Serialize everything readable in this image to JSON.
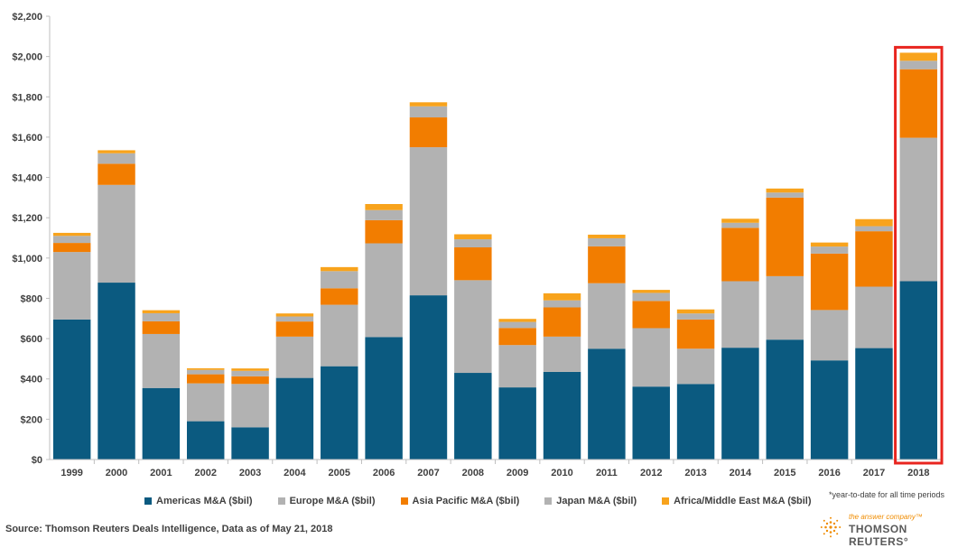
{
  "chart_data": {
    "type": "stacked-bar",
    "categories": [
      "1999",
      "2000",
      "2001",
      "2002",
      "2003",
      "2004",
      "2005",
      "2006",
      "2007",
      "2008",
      "2009",
      "2010",
      "2011",
      "2012",
      "2013",
      "2014",
      "2015",
      "2016",
      "2017",
      "2018"
    ],
    "y_tick_labels": [
      "$0",
      "$200",
      "$400",
      "$600",
      "$800",
      "$1,000",
      "$1,200",
      "$1,400",
      "$1,600",
      "$1,800",
      "$2,000",
      "$2,200"
    ],
    "ylim": [
      0,
      2200
    ],
    "series": [
      {
        "name": "Americas M&A ($bil)",
        "color": "#0b5a80",
        "values": [
          695,
          878,
          355,
          190,
          160,
          405,
          463,
          608,
          815,
          430,
          358,
          435,
          550,
          362,
          375,
          555,
          595,
          492,
          553,
          885
        ]
      },
      {
        "name": "Europe M&A ($bil)",
        "color": "#b2b2b2",
        "values": [
          335,
          485,
          268,
          188,
          215,
          205,
          305,
          465,
          735,
          460,
          210,
          175,
          325,
          290,
          175,
          330,
          315,
          250,
          305,
          712
        ]
      },
      {
        "name": "Asia Pacific M&A ($bil)",
        "color": "#f27d00",
        "values": [
          45,
          105,
          63,
          45,
          38,
          75,
          82,
          115,
          148,
          163,
          85,
          145,
          183,
          135,
          145,
          265,
          390,
          280,
          275,
          340
        ]
      },
      {
        "name": "Japan M&A ($bil)",
        "color": "#b2b2b2",
        "values": [
          35,
          52,
          40,
          22,
          27,
          25,
          85,
          50,
          55,
          40,
          30,
          35,
          40,
          40,
          30,
          25,
          25,
          35,
          25,
          42
        ]
      },
      {
        "name": "Africa/Middle East M&A ($bil)",
        "color": "#f8a31c",
        "values": [
          15,
          15,
          15,
          8,
          12,
          15,
          20,
          30,
          20,
          25,
          15,
          35,
          18,
          15,
          20,
          20,
          20,
          20,
          35,
          40
        ]
      }
    ],
    "highlight": {
      "category": "2018",
      "color": "#e8251f"
    },
    "footnote": "*year-to-date for all time periods"
  },
  "source": "Source: Thomson Reuters Deals Intelligence,  Data as of May 21, 2018",
  "brand": {
    "tagline": "the answer company™",
    "name": "THOMSON REUTERS°"
  }
}
